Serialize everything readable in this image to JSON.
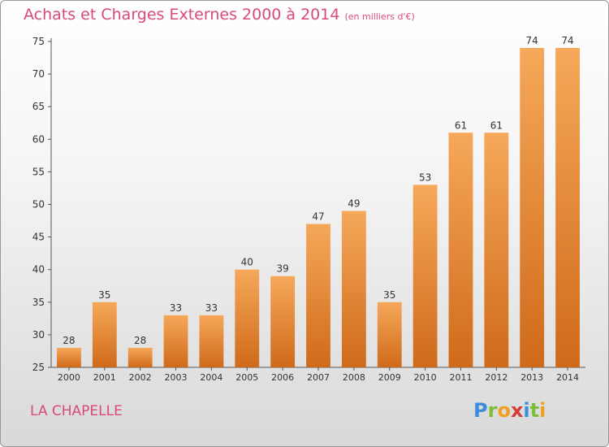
{
  "chart_data": {
    "type": "bar",
    "title": "Achats et Charges Externes 2000 à 2014",
    "subtitle": "(en milliers d'€)",
    "categories": [
      "2000",
      "2001",
      "2002",
      "2003",
      "2004",
      "2005",
      "2006",
      "2007",
      "2008",
      "2009",
      "2010",
      "2011",
      "2012",
      "2013",
      "2014"
    ],
    "values": [
      28,
      35,
      28,
      33,
      33,
      40,
      39,
      47,
      49,
      35,
      53,
      61,
      61,
      74,
      74
    ],
    "yticks": [
      25,
      30,
      35,
      40,
      45,
      50,
      55,
      60,
      65,
      70,
      75
    ],
    "ylim": [
      25,
      75
    ],
    "xlabel": "",
    "ylabel": "",
    "grid": false
  },
  "footer": {
    "place": "LA CHAPELLE",
    "logo_letters": [
      "P",
      "r",
      "o",
      "x",
      "i",
      "t",
      "i"
    ]
  },
  "colors": {
    "bar_top": "#f6a85a",
    "bar_bottom": "#cf6a1a",
    "title": "#d84a7a",
    "logo": [
      "#3a8fd8",
      "#7cbf3a",
      "#f0a020",
      "#d83a3a",
      "#3a8fd8",
      "#7cbf3a",
      "#f0a020"
    ]
  }
}
